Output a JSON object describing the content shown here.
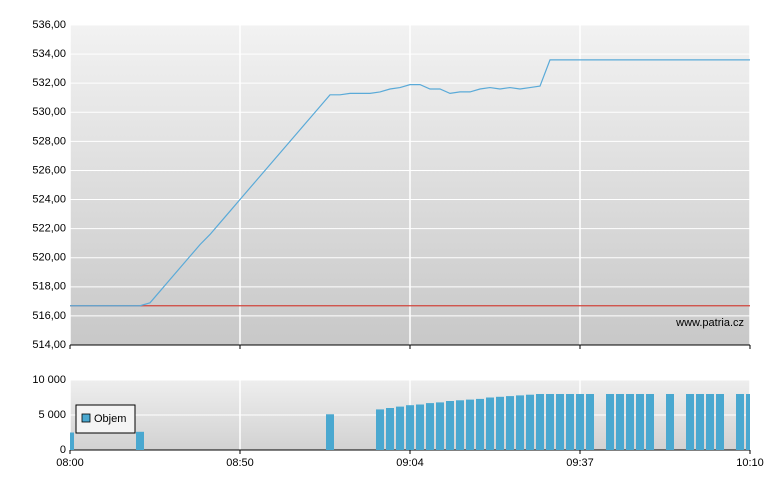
{
  "chart_data": [
    {
      "type": "line",
      "watermark": "www.patria.cz",
      "ylim": [
        514,
        536
      ],
      "yticks": [
        {
          "value": 514,
          "label": "514,00"
        },
        {
          "value": 516,
          "label": "516,00"
        },
        {
          "value": 518,
          "label": "518,00"
        },
        {
          "value": 520,
          "label": "520,00"
        },
        {
          "value": 522,
          "label": "522,00"
        },
        {
          "value": 524,
          "label": "524,00"
        },
        {
          "value": 526,
          "label": "526,00"
        },
        {
          "value": 528,
          "label": "528,00"
        },
        {
          "value": 530,
          "label": "530,00"
        },
        {
          "value": 532,
          "label": "532,00"
        },
        {
          "value": 534,
          "label": "534,00"
        },
        {
          "value": 536,
          "label": "536,00"
        }
      ],
      "xlim": [
        0,
        68
      ],
      "xticks": [
        {
          "value": 0,
          "label": "08:00"
        },
        {
          "value": 17,
          "label": "08:50"
        },
        {
          "value": 34,
          "label": "09:04"
        },
        {
          "value": 51,
          "label": "09:37"
        },
        {
          "value": 68,
          "label": "10:10"
        }
      ],
      "reference_line": {
        "value": 516.7,
        "color": "#d0443c"
      },
      "series": [
        {
          "color": "#5aaad8",
          "values": [
            516.7,
            516.7,
            516.7,
            516.7,
            516.7,
            516.7,
            516.7,
            516.7,
            516.9,
            517.7,
            518.5,
            519.3,
            520.1,
            520.9,
            521.6,
            522.4,
            523.2,
            524.0,
            524.8,
            525.6,
            526.4,
            527.2,
            528.0,
            528.8,
            529.6,
            530.4,
            531.2,
            531.2,
            531.3,
            531.3,
            531.3,
            531.4,
            531.6,
            531.7,
            531.9,
            531.9,
            531.6,
            531.6,
            531.3,
            531.4,
            531.4,
            531.6,
            531.7,
            531.6,
            531.7,
            531.6,
            531.7,
            531.8,
            533.6,
            533.6,
            533.6,
            533.6,
            533.6,
            533.6,
            533.6,
            533.6,
            533.6,
            533.6,
            533.6,
            533.6,
            533.6,
            533.6,
            533.6,
            533.6,
            533.6,
            533.6,
            533.6,
            533.6,
            533.6
          ]
        }
      ]
    },
    {
      "type": "bar",
      "ylim": [
        0,
        10000
      ],
      "yticks": [
        0,
        {
          "value": 5000,
          "label": "5 000"
        },
        {
          "value": 10000,
          "label": "10 000"
        }
      ],
      "xlim": [
        0,
        68
      ],
      "xticks": [
        {
          "value": 0,
          "label": "08:00"
        },
        {
          "value": 17,
          "label": "08:50"
        },
        {
          "value": 34,
          "label": "09:04"
        },
        {
          "value": 51,
          "label": "09:37"
        },
        {
          "value": 68,
          "label": "10:10"
        }
      ],
      "series": [
        {
          "name": "Objem",
          "color": "#4aa8d0",
          "values": [
            2500,
            null,
            null,
            null,
            null,
            null,
            null,
            2600,
            null,
            null,
            null,
            null,
            null,
            null,
            null,
            null,
            null,
            null,
            null,
            null,
            null,
            null,
            null,
            null,
            null,
            null,
            5100,
            null,
            null,
            null,
            null,
            5800,
            6000,
            6200,
            6400,
            6500,
            6700,
            6800,
            7000,
            7100,
            7200,
            7300,
            7500,
            7600,
            7700,
            7800,
            7900,
            8000,
            8000,
            8000,
            8000,
            8000,
            8000,
            null,
            8000,
            8000,
            8000,
            8000,
            8000,
            null,
            8000,
            null,
            8000,
            8000,
            8000,
            8000,
            null,
            8000,
            8000
          ]
        }
      ]
    }
  ]
}
